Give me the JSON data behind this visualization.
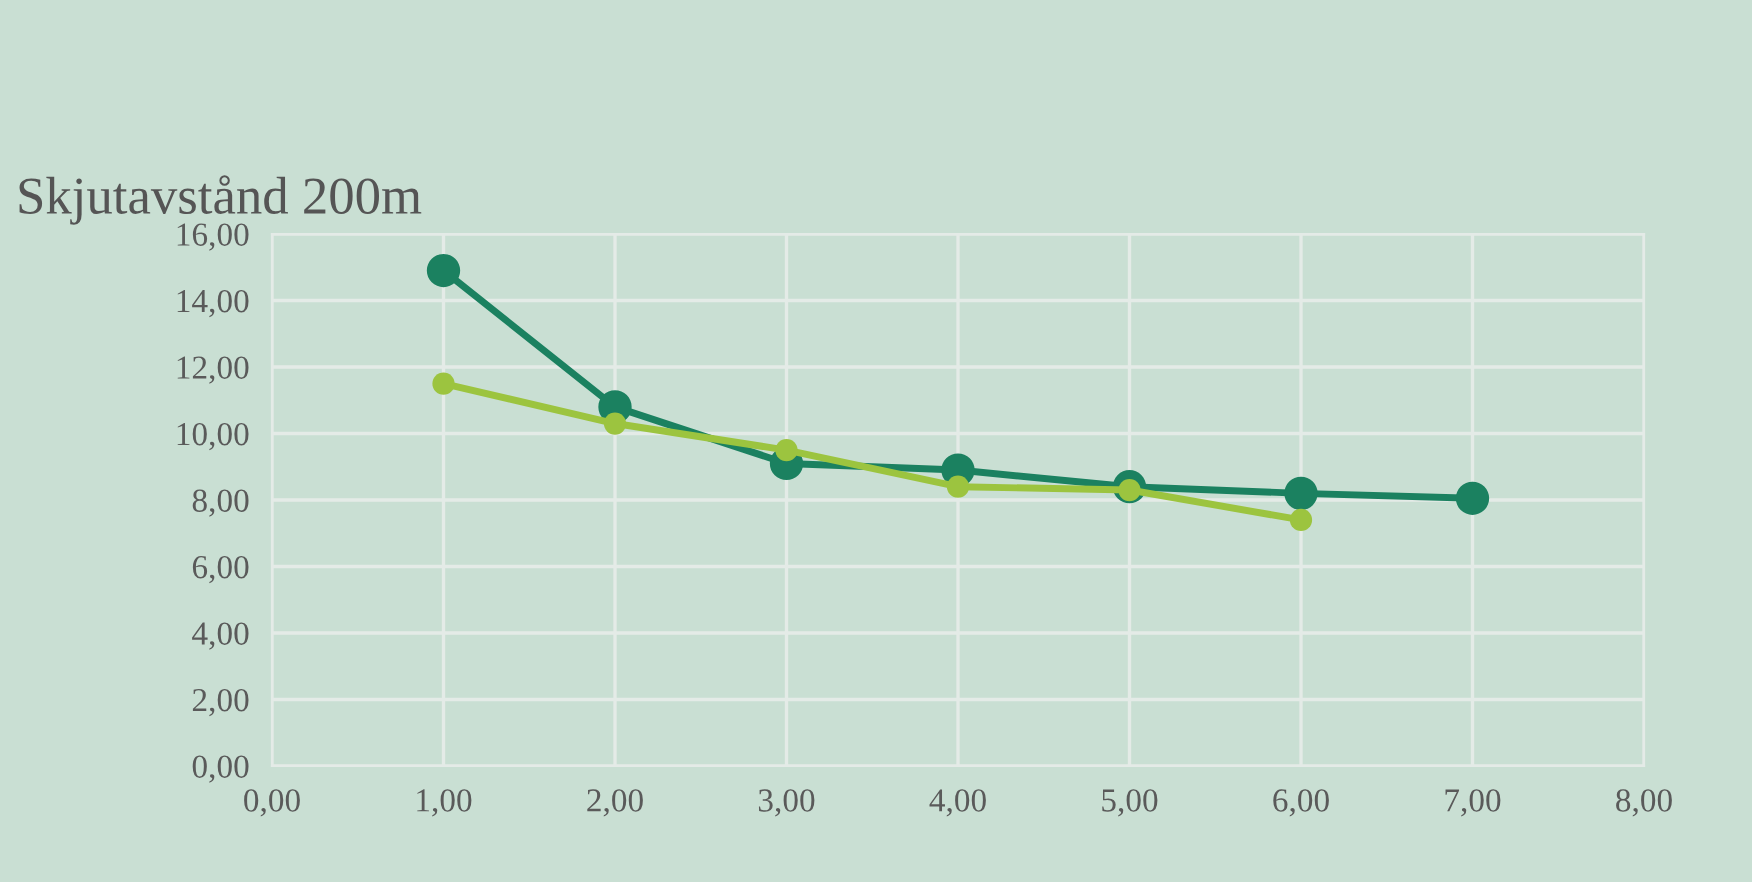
{
  "chart_data": {
    "type": "line",
    "title": "Skjutavstånd 200m",
    "series": [
      {
        "color": "#1b8160",
        "x": [
          1,
          2,
          3,
          4,
          5,
          6,
          7
        ],
        "values": [
          14.9,
          10.8,
          9.1,
          8.9,
          8.4,
          8.2,
          8.05
        ]
      },
      {
        "color": "#9cc43f",
        "x": [
          1,
          2,
          3,
          4,
          5,
          6
        ],
        "values": [
          11.5,
          10.3,
          9.5,
          8.4,
          8.3,
          7.4
        ]
      }
    ],
    "xlim": [
      0,
      8
    ],
    "xticks": [
      {
        "value": 0,
        "label": "0,00"
      },
      {
        "value": 1,
        "label": "1,00"
      },
      {
        "value": 2,
        "label": "2,00"
      },
      {
        "value": 3,
        "label": "3,00"
      },
      {
        "value": 4,
        "label": "4,00"
      },
      {
        "value": 5,
        "label": "5,00"
      },
      {
        "value": 6,
        "label": "6,00"
      },
      {
        "value": 7,
        "label": "7,00"
      },
      {
        "value": 8,
        "label": "8,00"
      }
    ],
    "ylim": [
      0,
      16
    ],
    "yticks": [
      {
        "value": 0,
        "label": "0,00"
      },
      {
        "value": 2,
        "label": "2,00"
      },
      {
        "value": 4,
        "label": "4,00"
      },
      {
        "value": 6,
        "label": "6,00"
      },
      {
        "value": 8,
        "label": "8,00"
      },
      {
        "value": 10,
        "label": "10,00"
      },
      {
        "value": 12,
        "label": "12,00"
      },
      {
        "value": 14,
        "label": "14,00"
      },
      {
        "value": 16,
        "label": "16,00"
      }
    ],
    "grid": true,
    "marker": "circle",
    "line_style": "solid"
  }
}
